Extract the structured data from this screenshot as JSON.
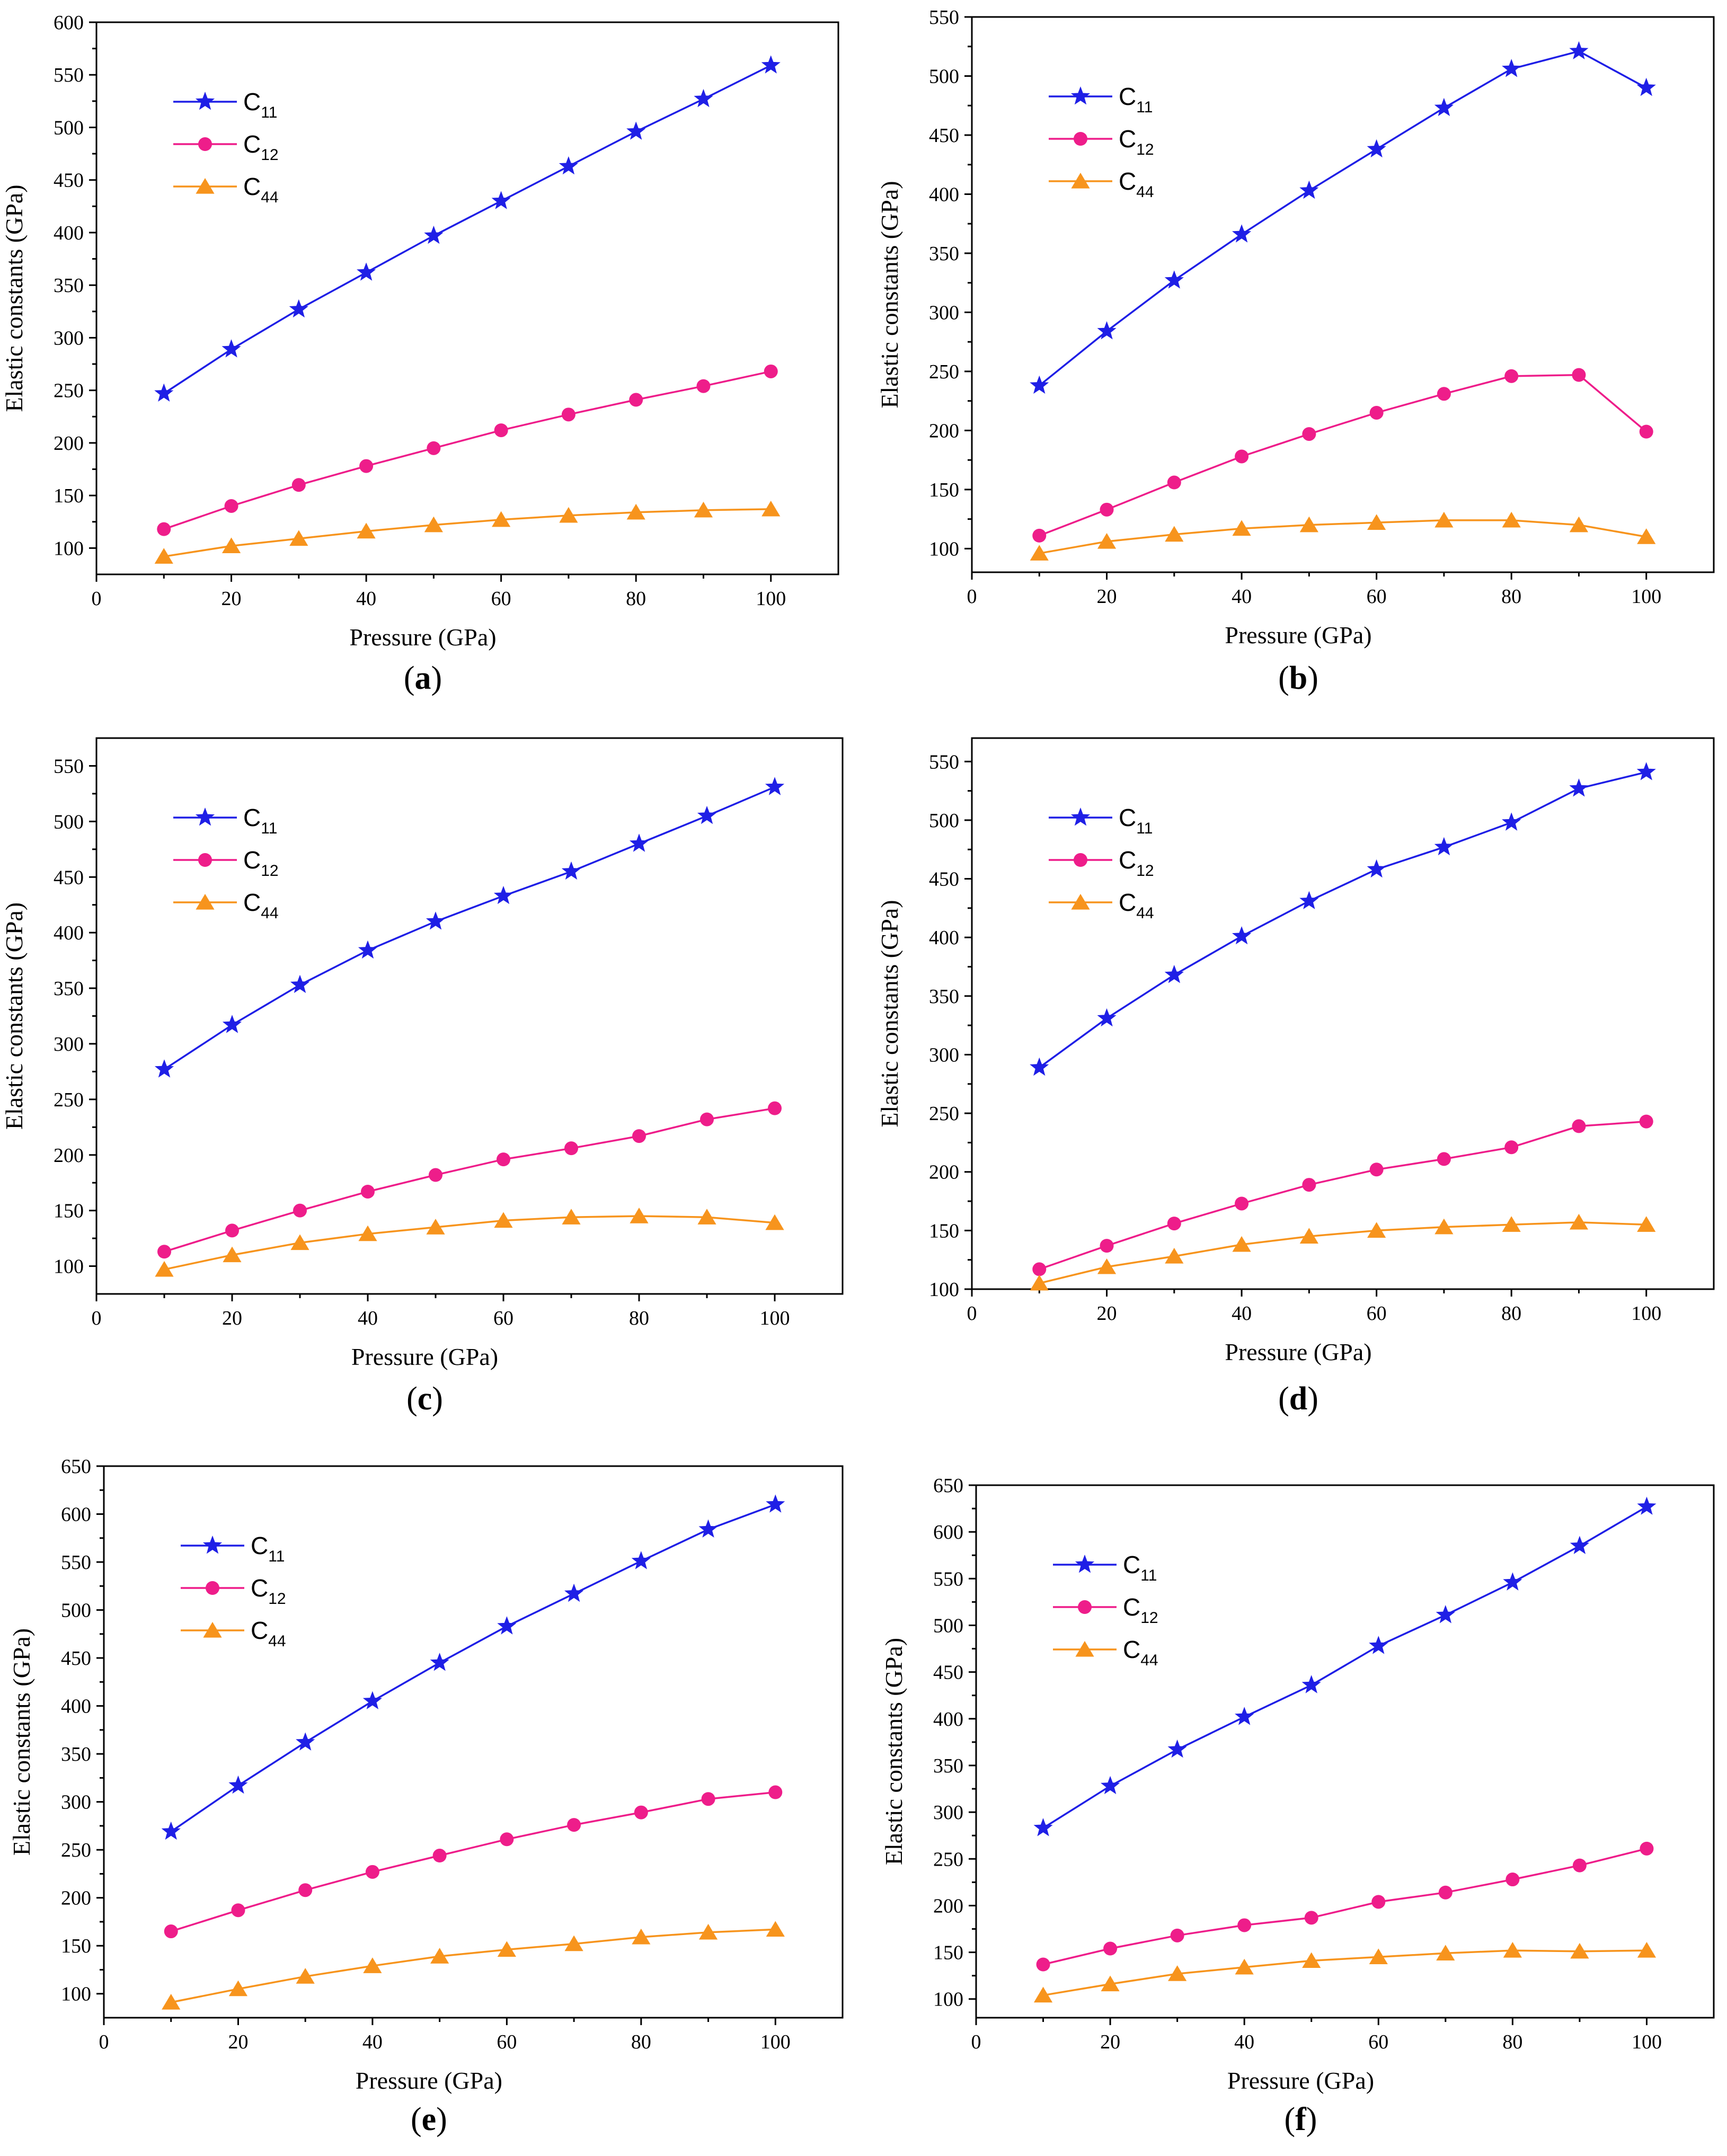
{
  "colors": {
    "c11": "#1f1fe6",
    "c12": "#ee1d8a",
    "c44": "#f7941d",
    "axis": "#000000"
  },
  "chart_data": [
    {
      "type": "line",
      "panel": "(a)",
      "panel_letter": "a",
      "xlabel": "Pressure (GPa)",
      "ylabel": "Elastic constants (GPa)",
      "xlim": [
        0,
        110
      ],
      "ylim": [
        75,
        600
      ],
      "xticks": [
        0,
        20,
        40,
        60,
        80,
        100
      ],
      "yticks": [
        100,
        150,
        200,
        250,
        300,
        350,
        400,
        450,
        500,
        550,
        600
      ],
      "legend_position": "top-left",
      "x": [
        10,
        20,
        30,
        40,
        50,
        60,
        70,
        80,
        90,
        100
      ],
      "series": [
        {
          "name": "C11",
          "base": "C",
          "sub": "11",
          "marker": "star",
          "color": "#1f1fe6",
          "values": [
            247,
            289,
            327,
            362,
            397,
            430,
            463,
            496,
            527,
            559
          ]
        },
        {
          "name": "C12",
          "base": "C",
          "sub": "12",
          "marker": "circle",
          "color": "#ee1d8a",
          "values": [
            118,
            140,
            160,
            178,
            195,
            212,
            227,
            241,
            254,
            268
          ]
        },
        {
          "name": "C44",
          "base": "C",
          "sub": "44",
          "marker": "triangle",
          "color": "#f7941d",
          "values": [
            92,
            102,
            109,
            116,
            122,
            127,
            131,
            134,
            136,
            137
          ]
        }
      ]
    },
    {
      "type": "line",
      "panel": "(b)",
      "panel_letter": "b",
      "xlabel": "Pressure (GPa)",
      "ylabel": "Elastic constants (GPa)",
      "xlim": [
        0,
        110
      ],
      "ylim": [
        80,
        550
      ],
      "xticks": [
        0,
        20,
        40,
        60,
        80,
        100
      ],
      "yticks": [
        100,
        150,
        200,
        250,
        300,
        350,
        400,
        450,
        500,
        550
      ],
      "legend_position": "top-left",
      "x": [
        10,
        20,
        30,
        40,
        50,
        60,
        70,
        80,
        90,
        100
      ],
      "series": [
        {
          "name": "C11",
          "base": "C",
          "sub": "11",
          "marker": "star",
          "color": "#1f1fe6",
          "values": [
            238,
            284,
            327,
            366,
            403,
            438,
            473,
            506,
            521,
            490
          ]
        },
        {
          "name": "C12",
          "base": "C",
          "sub": "12",
          "marker": "circle",
          "color": "#ee1d8a",
          "values": [
            111,
            133,
            156,
            178,
            197,
            215,
            231,
            246,
            247,
            199
          ]
        },
        {
          "name": "C44",
          "base": "C",
          "sub": "44",
          "marker": "triangle",
          "color": "#f7941d",
          "values": [
            96,
            106,
            112,
            117,
            120,
            122,
            124,
            124,
            120,
            110
          ]
        }
      ]
    },
    {
      "type": "line",
      "panel": "(c)",
      "panel_letter": "c",
      "xlabel": "Pressure (GPa)",
      "ylabel": "Elastic constants (GPa)",
      "xlim": [
        0,
        110
      ],
      "ylim": [
        75,
        575
      ],
      "xticks": [
        0,
        20,
        40,
        60,
        80,
        100
      ],
      "yticks": [
        100,
        150,
        200,
        250,
        300,
        350,
        400,
        450,
        500,
        550
      ],
      "legend_position": "top-left",
      "x": [
        10,
        20,
        30,
        40,
        50,
        60,
        70,
        80,
        90,
        100
      ],
      "series": [
        {
          "name": "C11",
          "base": "C",
          "sub": "11",
          "marker": "star",
          "color": "#1f1fe6",
          "values": [
            277,
            317,
            353,
            384,
            410,
            433,
            455,
            480,
            505,
            531
          ]
        },
        {
          "name": "C12",
          "base": "C",
          "sub": "12",
          "marker": "circle",
          "color": "#ee1d8a",
          "values": [
            113,
            132,
            150,
            167,
            182,
            196,
            206,
            217,
            232,
            242
          ]
        },
        {
          "name": "C44",
          "base": "C",
          "sub": "44",
          "marker": "triangle",
          "color": "#f7941d",
          "values": [
            97,
            110,
            121,
            129,
            135,
            141,
            144,
            145,
            144,
            139
          ]
        }
      ]
    },
    {
      "type": "line",
      "panel": "(d)",
      "panel_letter": "d",
      "xlabel": "Pressure (GPa)",
      "ylabel": "Elastic constants (GPa)",
      "xlim": [
        0,
        110
      ],
      "ylim": [
        100,
        570
      ],
      "xticks": [
        0,
        20,
        40,
        60,
        80,
        100
      ],
      "yticks": [
        100,
        150,
        200,
        250,
        300,
        350,
        400,
        450,
        500,
        550
      ],
      "legend_position": "top-left",
      "x": [
        10,
        20,
        30,
        40,
        50,
        60,
        70,
        80,
        90,
        100
      ],
      "series": [
        {
          "name": "C11",
          "base": "C",
          "sub": "11",
          "marker": "star",
          "color": "#1f1fe6",
          "values": [
            289,
            331,
            368,
            401,
            431,
            458,
            477,
            498,
            527,
            541
          ]
        },
        {
          "name": "C12",
          "base": "C",
          "sub": "12",
          "marker": "circle",
          "color": "#ee1d8a",
          "values": [
            117,
            137,
            156,
            173,
            189,
            202,
            211,
            221,
            239,
            243
          ]
        },
        {
          "name": "C44",
          "base": "C",
          "sub": "44",
          "marker": "triangle",
          "color": "#f7941d",
          "values": [
            105,
            119,
            128,
            138,
            145,
            150,
            153,
            155,
            157,
            155
          ]
        }
      ]
    },
    {
      "type": "line",
      "panel": "(e)",
      "panel_letter": "e",
      "xlabel": "Pressure (GPa)",
      "ylabel": "Elastic constants (GPa)",
      "xlim": [
        0,
        110
      ],
      "ylim": [
        75,
        650
      ],
      "xticks": [
        0,
        20,
        40,
        60,
        80,
        100
      ],
      "yticks": [
        100,
        150,
        200,
        250,
        300,
        350,
        400,
        450,
        500,
        550,
        600,
        650
      ],
      "legend_position": "top-left",
      "x": [
        10,
        20,
        30,
        40,
        50,
        60,
        70,
        80,
        90,
        100
      ],
      "series": [
        {
          "name": "C11",
          "base": "C",
          "sub": "11",
          "marker": "star",
          "color": "#1f1fe6",
          "values": [
            269,
            317,
            362,
            405,
            445,
            483,
            517,
            551,
            584,
            610
          ]
        },
        {
          "name": "C12",
          "base": "C",
          "sub": "12",
          "marker": "circle",
          "color": "#ee1d8a",
          "values": [
            165,
            187,
            208,
            227,
            244,
            261,
            276,
            289,
            303,
            310
          ]
        },
        {
          "name": "C44",
          "base": "C",
          "sub": "44",
          "marker": "triangle",
          "color": "#f7941d",
          "values": [
            91,
            105,
            118,
            129,
            139,
            146,
            152,
            159,
            164,
            167
          ]
        }
      ]
    },
    {
      "type": "line",
      "panel": "(f)",
      "panel_letter": "f",
      "xlabel": "Pressure (GPa)",
      "ylabel": "Elastic constants (GPa)",
      "xlim": [
        0,
        110
      ],
      "ylim": [
        80,
        650
      ],
      "xticks": [
        0,
        20,
        40,
        60,
        80,
        100
      ],
      "yticks": [
        100,
        150,
        200,
        250,
        300,
        350,
        400,
        450,
        500,
        550,
        600,
        650
      ],
      "legend_position": "top-left",
      "x": [
        10,
        20,
        30,
        40,
        50,
        60,
        70,
        80,
        90,
        100
      ],
      "series": [
        {
          "name": "C11",
          "base": "C",
          "sub": "11",
          "marker": "star",
          "color": "#1f1fe6",
          "values": [
            283,
            328,
            367,
            402,
            436,
            478,
            511,
            546,
            585,
            627
          ]
        },
        {
          "name": "C12",
          "base": "C",
          "sub": "12",
          "marker": "circle",
          "color": "#ee1d8a",
          "values": [
            137,
            154,
            168,
            179,
            187,
            204,
            214,
            228,
            243,
            261
          ]
        },
        {
          "name": "C44",
          "base": "C",
          "sub": "44",
          "marker": "triangle",
          "color": "#f7941d",
          "values": [
            104,
            116,
            127,
            134,
            141,
            145,
            149,
            152,
            151,
            152
          ]
        }
      ]
    }
  ]
}
